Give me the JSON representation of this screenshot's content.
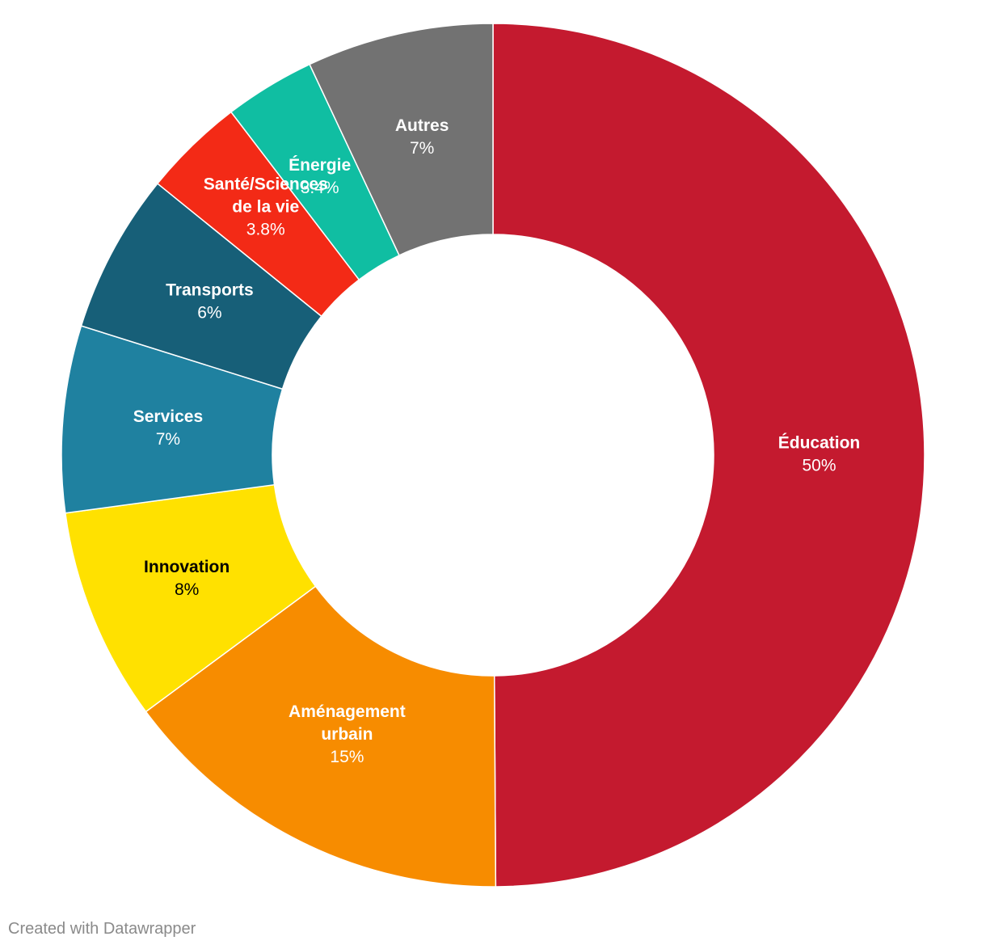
{
  "chart_data": {
    "type": "pie",
    "style": "donut",
    "title": "",
    "slices": [
      {
        "label": [
          "Éducation"
        ],
        "value": 50,
        "value_label": "50%",
        "color": "#c41a2f",
        "text_color": "#ffffff"
      },
      {
        "label": [
          "Aménagement",
          "urbain"
        ],
        "value": 15,
        "value_label": "15%",
        "color": "#f78c00",
        "text_color": "#ffffff"
      },
      {
        "label": [
          "Innovation"
        ],
        "value": 8,
        "value_label": "8%",
        "color": "#ffe100",
        "text_color": "#000000"
      },
      {
        "label": [
          "Services"
        ],
        "value": 7,
        "value_label": "7%",
        "color": "#1f81a0",
        "text_color": "#ffffff"
      },
      {
        "label": [
          "Transports"
        ],
        "value": 6,
        "value_label": "6%",
        "color": "#175f78",
        "text_color": "#ffffff"
      },
      {
        "label": [
          "Santé/Sciences",
          "de la vie"
        ],
        "value": 3.8,
        "value_label": "3.8%",
        "color": "#f32a16",
        "text_color": "#ffffff"
      },
      {
        "label": [
          "Énergie"
        ],
        "value": 3.4,
        "value_label": "3.4%",
        "color": "#10bea2",
        "text_color": "#ffffff"
      },
      {
        "label": [
          "Autres"
        ],
        "value": 7,
        "value_label": "7%",
        "color": "#727272",
        "text_color": "#ffffff"
      }
    ]
  },
  "footer": {
    "credit": "Created with Datawrapper"
  }
}
